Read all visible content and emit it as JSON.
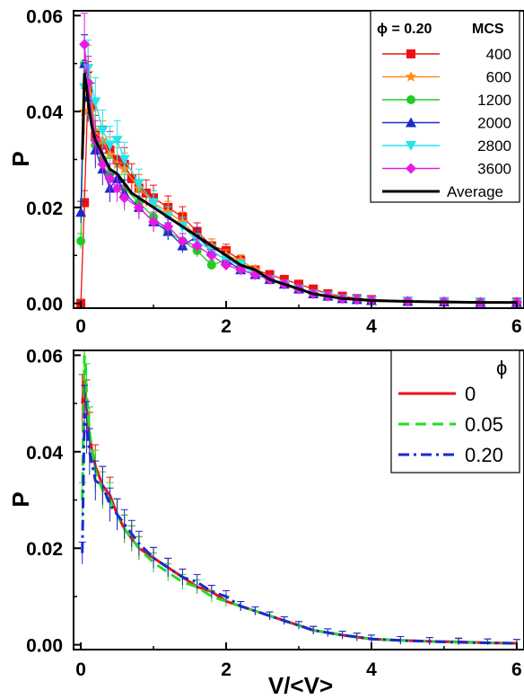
{
  "chart_data": [
    {
      "type": "line",
      "panel": "top",
      "xlabel": "",
      "ylabel": "P",
      "xlim": [
        -0.1,
        6.1
      ],
      "ylim": [
        -0.001,
        0.061
      ],
      "xticks": [
        "0",
        "2",
        "4",
        "6"
      ],
      "yticks": [
        "0.00",
        "0.02",
        "0.04",
        "0.06"
      ],
      "legend": {
        "placement": "top-right",
        "header_left": "ϕ = 0.20",
        "header_right": "MCS"
      },
      "series": [
        {
          "name": "400",
          "color": "#ee1111",
          "marker": "square",
          "x": [
            0,
            0.05,
            0.1,
            0.15,
            0.2,
            0.3,
            0.4,
            0.5,
            0.6,
            0.7,
            0.8,
            0.9,
            1.0,
            1.2,
            1.4,
            1.6,
            1.8,
            2.0,
            2.2,
            2.4,
            2.6,
            2.8,
            3.0,
            3.2,
            3.4,
            3.6,
            3.8,
            4.0,
            4.5,
            5.0,
            5.5,
            6.0
          ],
          "y": [
            0.0,
            0.021,
            0.045,
            0.041,
            0.035,
            0.033,
            0.032,
            0.03,
            0.029,
            0.026,
            0.024,
            0.023,
            0.022,
            0.02,
            0.018,
            0.015,
            0.012,
            0.011,
            0.009,
            0.007,
            0.006,
            0.005,
            0.004,
            0.003,
            0.002,
            0.0015,
            0.001,
            0.0008,
            0.0005,
            0.0004,
            0.0003,
            0.0003
          ]
        },
        {
          "name": "600",
          "color": "#ff8c1a",
          "marker": "star",
          "x": [
            0.05,
            0.1,
            0.2,
            0.3,
            0.4,
            0.5,
            0.6,
            0.8,
            1.0,
            1.2,
            1.4,
            1.6,
            1.8,
            2.0,
            2.2,
            2.4,
            2.6,
            2.8,
            3.0,
            3.2,
            3.4,
            3.6,
            3.8,
            4.0,
            4.5,
            5.0,
            5.5,
            6.0
          ],
          "y": [
            0.04,
            0.048,
            0.036,
            0.034,
            0.031,
            0.029,
            0.028,
            0.024,
            0.021,
            0.019,
            0.017,
            0.014,
            0.012,
            0.01,
            0.009,
            0.007,
            0.005,
            0.004,
            0.003,
            0.002,
            0.0015,
            0.001,
            0.0008,
            0.0006,
            0.0004,
            0.0003,
            0.0002,
            0.0002
          ]
        },
        {
          "name": "1200",
          "color": "#22cc22",
          "marker": "circle",
          "x": [
            0,
            0.05,
            0.1,
            0.2,
            0.3,
            0.4,
            0.6,
            0.8,
            1.0,
            1.2,
            1.4,
            1.6,
            1.8,
            2.0,
            2.2,
            2.4,
            2.6,
            2.8,
            3.0,
            3.2,
            3.4,
            3.6,
            3.8,
            4.0,
            4.5,
            5.0,
            5.5,
            6.0
          ],
          "y": [
            0.013,
            0.05,
            0.046,
            0.033,
            0.03,
            0.027,
            0.024,
            0.021,
            0.018,
            0.015,
            0.013,
            0.011,
            0.008,
            0.009,
            0.008,
            0.006,
            0.005,
            0.004,
            0.003,
            0.002,
            0.0015,
            0.001,
            0.0008,
            0.0006,
            0.0004,
            0.0003,
            0.0002,
            0.0002
          ]
        },
        {
          "name": "2000",
          "color": "#1a2bcc",
          "marker": "triangle-up",
          "x": [
            0,
            0.05,
            0.1,
            0.2,
            0.3,
            0.4,
            0.5,
            0.6,
            0.8,
            1.0,
            1.2,
            1.4,
            1.6,
            1.8,
            2.0,
            2.2,
            2.4,
            2.6,
            2.8,
            3.0,
            3.2,
            3.4,
            3.6,
            3.8,
            4.0,
            4.5,
            5.0,
            5.5,
            6.0
          ],
          "y": [
            0.019,
            0.05,
            0.043,
            0.032,
            0.028,
            0.024,
            0.026,
            0.023,
            0.02,
            0.017,
            0.015,
            0.012,
            0.014,
            0.011,
            0.009,
            0.007,
            0.006,
            0.005,
            0.004,
            0.003,
            0.002,
            0.0015,
            0.001,
            0.0008,
            0.0006,
            0.0004,
            0.0003,
            0.0002,
            0.0002
          ]
        },
        {
          "name": "2800",
          "color": "#22e5f0",
          "marker": "triangle-down",
          "x": [
            0.05,
            0.1,
            0.2,
            0.3,
            0.4,
            0.5,
            0.6,
            0.8,
            1.0,
            1.2,
            1.4,
            1.6,
            1.8,
            2.0,
            2.2,
            2.4,
            2.6,
            2.8,
            3.0,
            3.2,
            3.4,
            3.6,
            3.8,
            4.0,
            4.5,
            5.0,
            5.5,
            6.0
          ],
          "y": [
            0.045,
            0.049,
            0.042,
            0.036,
            0.033,
            0.034,
            0.03,
            0.025,
            0.021,
            0.018,
            0.016,
            0.013,
            0.011,
            0.009,
            0.008,
            0.006,
            0.005,
            0.004,
            0.003,
            0.002,
            0.0015,
            0.001,
            0.0008,
            0.0006,
            0.0005,
            0.0004,
            0.0003,
            0.0002
          ]
        },
        {
          "name": "3600",
          "color": "#e61ae6",
          "marker": "diamond",
          "x": [
            0.05,
            0.1,
            0.2,
            0.3,
            0.4,
            0.5,
            0.6,
            0.8,
            1.0,
            1.2,
            1.4,
            1.6,
            1.8,
            2.0,
            2.2,
            2.4,
            2.6,
            2.8,
            3.0,
            3.2,
            3.4,
            3.6,
            3.8,
            4.0,
            4.5,
            5.0,
            5.5,
            6.0
          ],
          "y": [
            0.054,
            0.046,
            0.034,
            0.029,
            0.026,
            0.024,
            0.022,
            0.02,
            0.017,
            0.016,
            0.013,
            0.012,
            0.01,
            0.008,
            0.007,
            0.006,
            0.005,
            0.004,
            0.003,
            0.002,
            0.0015,
            0.001,
            0.0008,
            0.0006,
            0.0004,
            0.0003,
            0.0002,
            0.0002
          ]
        },
        {
          "name": "Average",
          "color": "#000000",
          "marker": "none",
          "x": [
            0.02,
            0.05,
            0.08,
            0.1,
            0.15,
            0.2,
            0.3,
            0.4,
            0.5,
            0.6,
            0.7,
            0.8,
            0.9,
            1.0,
            1.2,
            1.4,
            1.6,
            1.8,
            2.0,
            2.2,
            2.4,
            2.6,
            2.8,
            3.0,
            3.2,
            3.4,
            3.6,
            3.8,
            4.0,
            4.5,
            5.0,
            5.5,
            6.0
          ],
          "y": [
            0.03,
            0.048,
            0.045,
            0.042,
            0.037,
            0.034,
            0.031,
            0.028,
            0.027,
            0.025,
            0.023,
            0.022,
            0.021,
            0.02,
            0.018,
            0.016,
            0.014,
            0.012,
            0.01,
            0.008,
            0.007,
            0.005,
            0.004,
            0.003,
            0.002,
            0.0015,
            0.001,
            0.0008,
            0.0006,
            0.0004,
            0.0003,
            0.0002,
            0.0002
          ]
        }
      ]
    },
    {
      "type": "line",
      "panel": "bottom",
      "xlabel": "V/<V>",
      "ylabel": "P",
      "xlim": [
        -0.1,
        6.1
      ],
      "ylim": [
        -0.001,
        0.061
      ],
      "xticks": [
        "0",
        "2",
        "4",
        "6"
      ],
      "yticks": [
        "0.00",
        "0.02",
        "0.04",
        "0.06"
      ],
      "legend": {
        "placement": "top-right",
        "header_right": "ϕ"
      },
      "series": [
        {
          "name": "0",
          "color": "#ee1111",
          "style": "solid",
          "x": [
            0.02,
            0.05,
            0.08,
            0.12,
            0.2,
            0.3,
            0.4,
            0.5,
            0.6,
            0.7,
            0.8,
            1.0,
            1.2,
            1.4,
            1.6,
            1.8,
            2.0,
            2.2,
            2.4,
            2.6,
            2.8,
            3.0,
            3.2,
            3.4,
            3.6,
            3.8,
            4.0,
            4.4,
            4.8,
            5.2,
            5.6,
            6.0
          ],
          "y": [
            0.05,
            0.055,
            0.049,
            0.043,
            0.037,
            0.033,
            0.031,
            0.027,
            0.024,
            0.022,
            0.02,
            0.018,
            0.016,
            0.014,
            0.012,
            0.011,
            0.009,
            0.008,
            0.007,
            0.006,
            0.005,
            0.004,
            0.003,
            0.0025,
            0.002,
            0.0016,
            0.0012,
            0.0009,
            0.0007,
            0.0006,
            0.0004,
            0.0003
          ]
        },
        {
          "name": "0.05",
          "color": "#22dd22",
          "style": "dashed",
          "x": [
            0.02,
            0.05,
            0.08,
            0.12,
            0.2,
            0.3,
            0.4,
            0.5,
            0.6,
            0.7,
            0.8,
            1.0,
            1.2,
            1.4,
            1.6,
            1.8,
            2.0,
            2.2,
            2.4,
            2.6,
            2.8,
            3.0,
            3.2,
            3.4,
            3.6,
            3.8,
            4.0,
            4.4,
            4.8,
            5.2,
            5.6,
            6.0
          ],
          "y": [
            0.03,
            0.06,
            0.052,
            0.044,
            0.036,
            0.032,
            0.03,
            0.027,
            0.024,
            0.022,
            0.02,
            0.017,
            0.015,
            0.013,
            0.012,
            0.01,
            0.009,
            0.008,
            0.007,
            0.006,
            0.005,
            0.004,
            0.003,
            0.0025,
            0.002,
            0.0016,
            0.0012,
            0.0009,
            0.0007,
            0.0005,
            0.0004,
            0.0003
          ]
        },
        {
          "name": "0.20",
          "color": "#1a2bcc",
          "style": "dashdot",
          "x": [
            0.02,
            0.05,
            0.08,
            0.12,
            0.2,
            0.3,
            0.4,
            0.5,
            0.6,
            0.7,
            0.8,
            1.0,
            1.2,
            1.4,
            1.6,
            1.8,
            2.0,
            2.2,
            2.4,
            2.6,
            2.8,
            3.0,
            3.2,
            3.4,
            3.6,
            3.8,
            4.0,
            4.4,
            4.8,
            5.2,
            5.6,
            6.0
          ],
          "y": [
            0.019,
            0.048,
            0.045,
            0.04,
            0.034,
            0.033,
            0.029,
            0.027,
            0.025,
            0.023,
            0.021,
            0.018,
            0.016,
            0.014,
            0.013,
            0.011,
            0.01,
            0.008,
            0.007,
            0.006,
            0.005,
            0.004,
            0.003,
            0.0025,
            0.002,
            0.0016,
            0.0012,
            0.0009,
            0.0007,
            0.0005,
            0.0004,
            0.0003
          ]
        }
      ]
    }
  ]
}
